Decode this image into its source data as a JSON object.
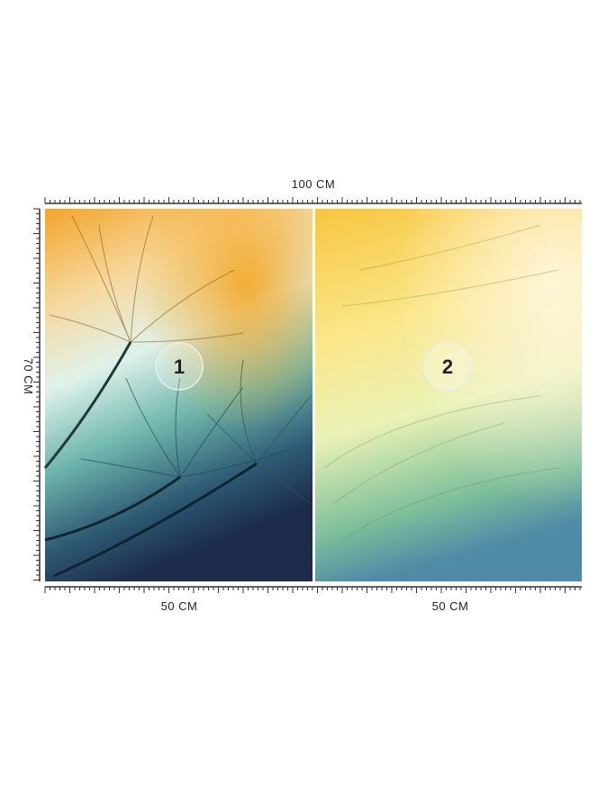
{
  "dimensions": {
    "width": "100 CM",
    "height": "70 CM",
    "panels": [
      {
        "number": "1",
        "width": "50 CM"
      },
      {
        "number": "2",
        "width": "50 CM"
      }
    ]
  }
}
